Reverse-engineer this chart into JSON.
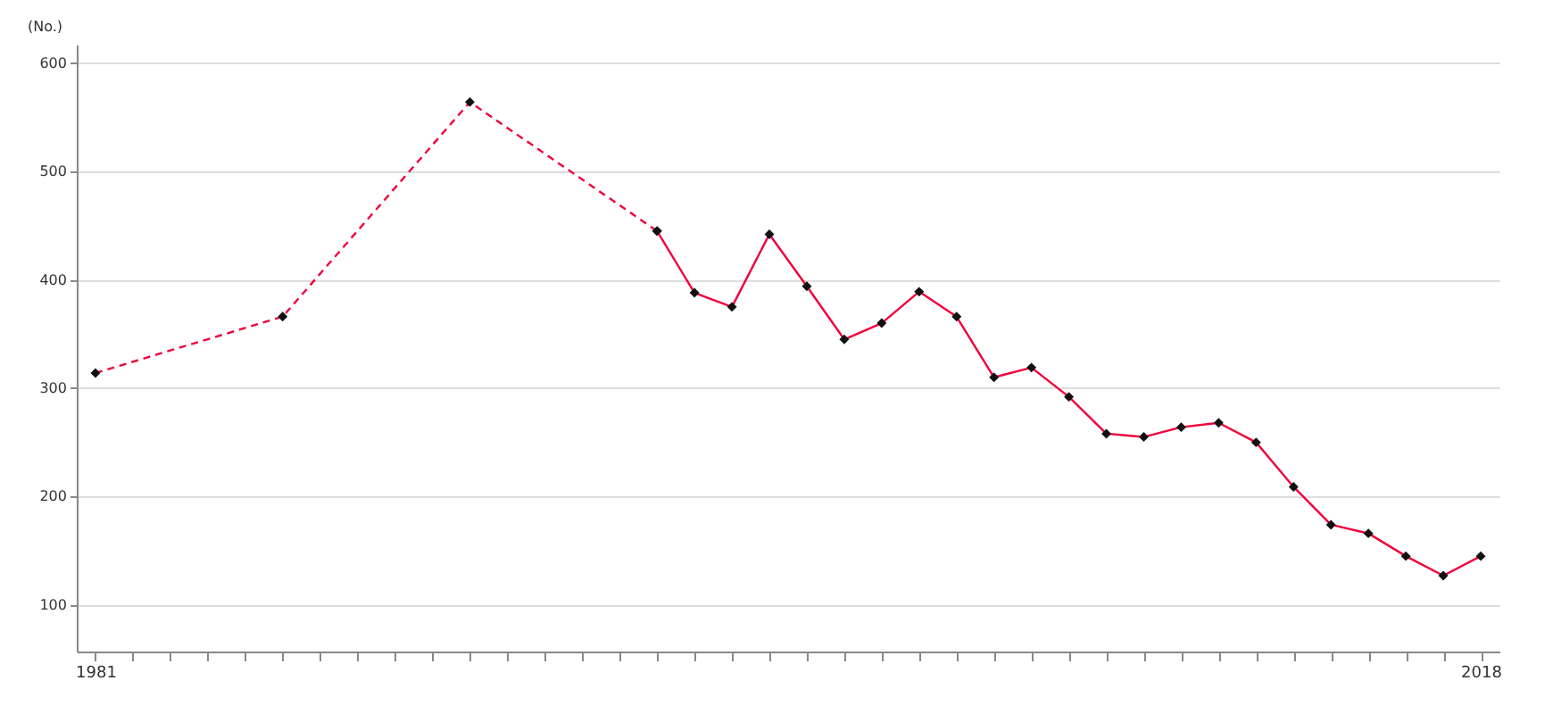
{
  "chart_data": {
    "type": "line",
    "ylabel": "(No.)",
    "xlim": [
      1980.5,
      2018.5
    ],
    "xticks": [
      1981,
      {
        "value": 1982,
        "label": null
      },
      {
        "value": 1983,
        "label": null
      },
      {
        "value": 1984,
        "label": null
      },
      {
        "value": 1985,
        "label": null
      },
      {
        "value": 1986,
        "label": null
      },
      {
        "value": 1987,
        "label": null
      },
      {
        "value": 1988,
        "label": null
      },
      {
        "value": 1989,
        "label": null
      },
      {
        "value": 1990,
        "label": null
      },
      {
        "value": 1991,
        "label": null
      },
      {
        "value": 1992,
        "label": null
      },
      {
        "value": 1993,
        "label": null
      },
      {
        "value": 1994,
        "label": null
      },
      {
        "value": 1995,
        "label": null
      },
      {
        "value": 1996,
        "label": null
      },
      {
        "value": 1997,
        "label": null
      },
      {
        "value": 1998,
        "label": null
      },
      {
        "value": 1999,
        "label": null
      },
      {
        "value": 2000,
        "label": null
      },
      {
        "value": 2001,
        "label": null
      },
      {
        "value": 2002,
        "label": null
      },
      {
        "value": 2003,
        "label": null
      },
      {
        "value": 2004,
        "label": null
      },
      {
        "value": 2005,
        "label": null
      },
      {
        "value": 2006,
        "label": null
      },
      {
        "value": 2007,
        "label": null
      },
      {
        "value": 2008,
        "label": null
      },
      {
        "value": 2009,
        "label": null
      },
      {
        "value": 2010,
        "label": null
      },
      {
        "value": 2011,
        "label": null
      },
      {
        "value": 2012,
        "label": null
      },
      {
        "value": 2013,
        "label": null
      },
      {
        "value": 2014,
        "label": null
      },
      {
        "value": 2015,
        "label": null
      },
      {
        "value": 2016,
        "label": null
      },
      {
        "value": 2017,
        "label": null
      },
      2018
    ],
    "ylim": [
      57,
      617
    ],
    "yticks": [
      100,
      200,
      300,
      400,
      500,
      600
    ],
    "grid": "y",
    "marker": "diamond",
    "series": [
      {
        "color": "#f0003c",
        "line_style": "dashed",
        "x": [
          1981,
          1986,
          1991,
          1996
        ],
        "values": [
          314,
          366,
          564,
          445
        ]
      },
      {
        "color": "#f0003c",
        "line_style": "solid",
        "x": [
          1996,
          1997,
          1998,
          1999,
          2000,
          2001,
          2002,
          2003,
          2004,
          2005,
          2006,
          2007,
          2008,
          2009,
          2010,
          2011,
          2012,
          2013,
          2014,
          2015,
          2016,
          2017,
          2018
        ],
        "values": [
          445,
          388,
          375,
          442,
          394,
          345,
          360,
          389,
          366,
          310,
          319,
          292,
          258,
          255,
          264,
          268,
          250,
          209,
          174,
          166,
          145,
          127,
          145
        ]
      }
    ]
  }
}
